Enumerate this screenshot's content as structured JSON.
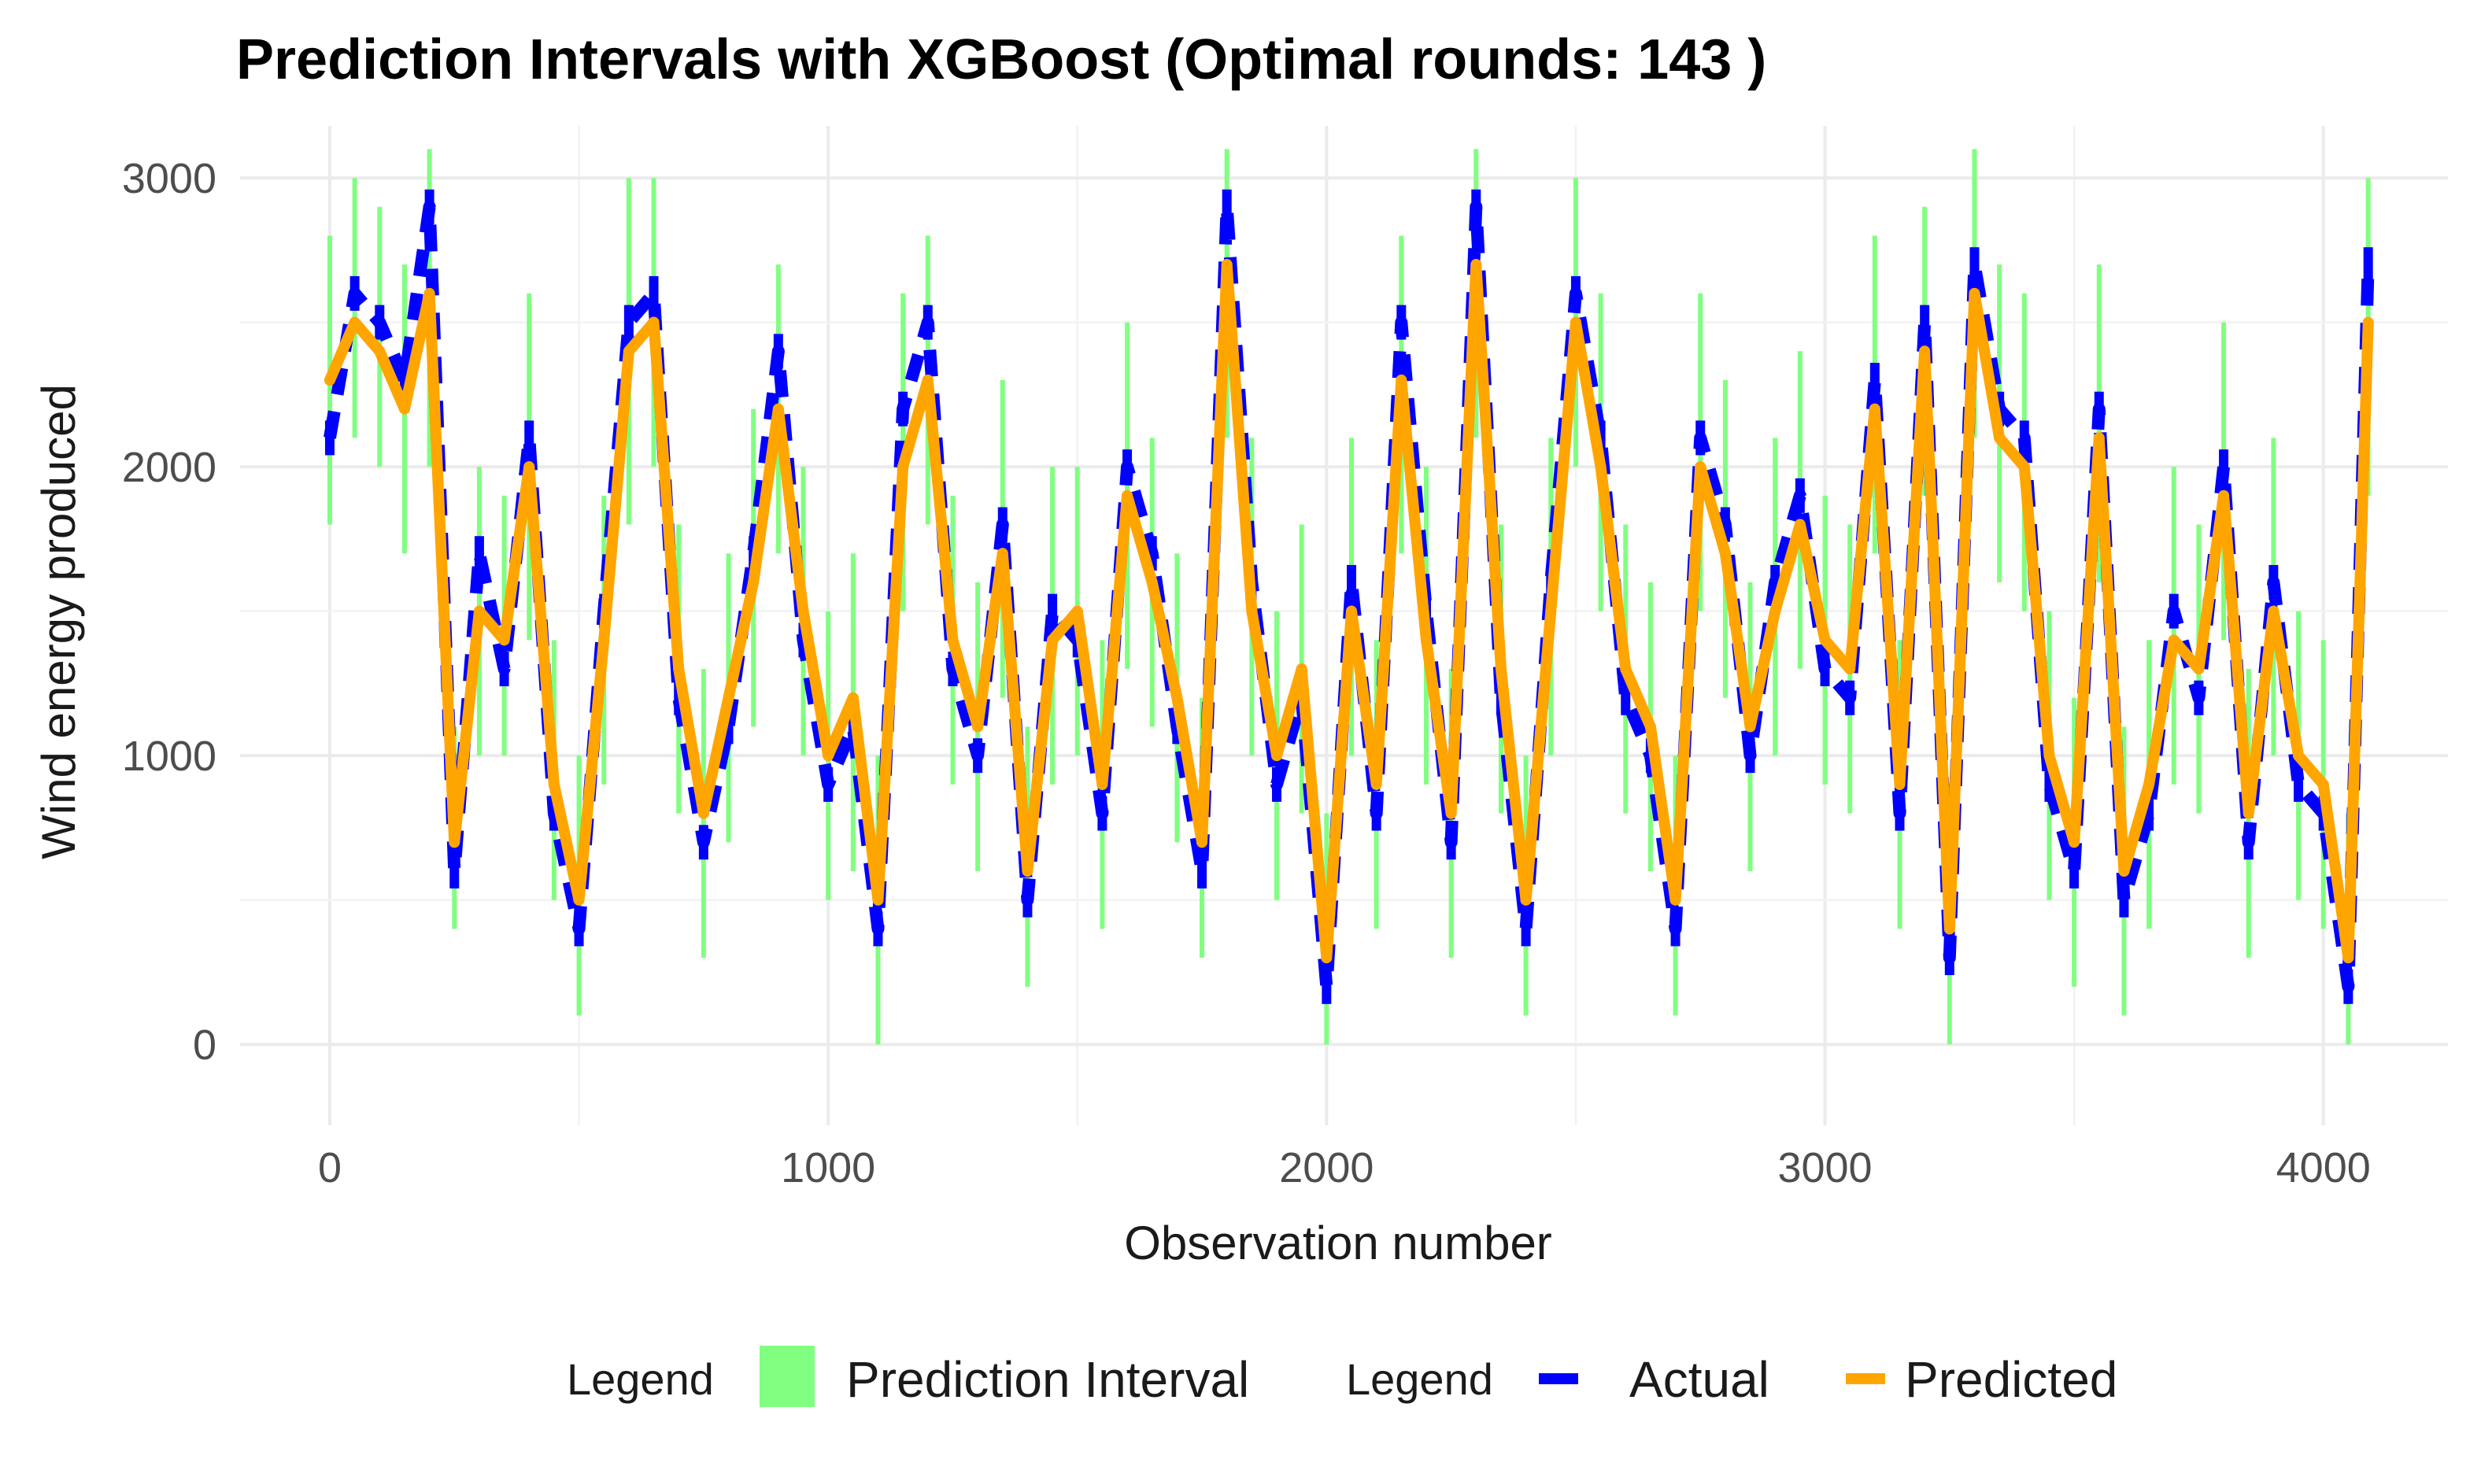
{
  "chart_data": {
    "type": "line",
    "title": "Prediction Intervals with XGBoost (Optimal rounds: 143 )",
    "xlabel": "Observation number",
    "ylabel": "Wind energy produced",
    "xlim": [
      -180,
      4250
    ],
    "ylim": [
      -280,
      3180
    ],
    "xticks": [
      0,
      1000,
      2000,
      3000,
      4000
    ],
    "xtick_labels": [
      "0",
      "1000",
      "2000",
      "3000",
      "4000"
    ],
    "yticks": [
      0,
      1000,
      2000,
      3000
    ],
    "ytick_labels": [
      "0",
      "1000",
      "2000",
      "3000"
    ],
    "grid": true,
    "legend_position": "bottom",
    "legend": [
      {
        "title": "Legend",
        "items": [
          {
            "label": "Prediction Interval",
            "color": "#80ff80",
            "kind": "fill"
          }
        ]
      },
      {
        "title": "Legend",
        "items": [
          {
            "label": "Actual",
            "color": "#0000ff",
            "kind": "dash"
          },
          {
            "label": "Predicted",
            "color": "#ffa500",
            "kind": "line"
          }
        ]
      }
    ],
    "x": [
      0,
      50,
      100,
      150,
      200,
      250,
      300,
      350,
      400,
      450,
      500,
      550,
      600,
      650,
      700,
      750,
      800,
      850,
      900,
      950,
      1000,
      1050,
      1100,
      1150,
      1200,
      1250,
      1300,
      1350,
      1400,
      1450,
      1500,
      1550,
      1600,
      1650,
      1700,
      1750,
      1800,
      1850,
      1900,
      1950,
      2000,
      2050,
      2100,
      2150,
      2200,
      2250,
      2300,
      2350,
      2400,
      2450,
      2500,
      2550,
      2600,
      2650,
      2700,
      2750,
      2800,
      2850,
      2900,
      2950,
      3000,
      3050,
      3100,
      3150,
      3200,
      3250,
      3300,
      3350,
      3400,
      3450,
      3500,
      3550,
      3600,
      3650,
      3700,
      3750,
      3800,
      3850,
      3900,
      3950,
      4000,
      4050,
      4090
    ],
    "series": [
      {
        "name": "Actual",
        "color": "#0000ff",
        "values": [
          2100,
          2600,
          2500,
          2300,
          2900,
          600,
          1700,
          1300,
          2100,
          800,
          400,
          1500,
          2500,
          2600,
          1200,
          700,
          1100,
          1700,
          2400,
          1400,
          900,
          1100,
          400,
          2200,
          2500,
          1300,
          1000,
          1800,
          500,
          1500,
          1400,
          800,
          2000,
          1700,
          1100,
          600,
          2900,
          1600,
          900,
          1200,
          200,
          1600,
          800,
          2500,
          1500,
          700,
          2900,
          1200,
          400,
          1600,
          2600,
          2100,
          1200,
          1000,
          400,
          2100,
          1800,
          1000,
          1600,
          1900,
          1300,
          1200,
          2300,
          800,
          2500,
          300,
          2700,
          2200,
          2100,
          900,
          600,
          2200,
          500,
          800,
          1500,
          1200,
          2000,
          700,
          1600,
          900,
          800,
          200,
          2700
        ]
      },
      {
        "name": "Predicted",
        "color": "#ffa500",
        "values": [
          2300,
          2500,
          2400,
          2200,
          2600,
          700,
          1500,
          1400,
          2000,
          900,
          500,
          1400,
          2400,
          2500,
          1300,
          800,
          1200,
          1600,
          2200,
          1500,
          1000,
          1200,
          500,
          2000,
          2300,
          1400,
          1100,
          1700,
          600,
          1400,
          1500,
          900,
          1900,
          1600,
          1200,
          700,
          2700,
          1500,
          1000,
          1300,
          300,
          1500,
          900,
          2300,
          1400,
          800,
          2700,
          1300,
          500,
          1500,
          2500,
          2000,
          1300,
          1100,
          500,
          2000,
          1700,
          1100,
          1500,
          1800,
          1400,
          1300,
          2200,
          900,
          2400,
          400,
          2600,
          2100,
          2000,
          1000,
          700,
          2100,
          600,
          900,
          1400,
          1300,
          1900,
          800,
          1500,
          1000,
          900,
          300,
          2500
        ]
      },
      {
        "name": "Prediction Interval",
        "color": "#80ff80",
        "kind": "band",
        "lower": [
          1800,
          2100,
          2000,
          1700,
          2000,
          400,
          1000,
          1000,
          1400,
          500,
          100,
          900,
          1800,
          2000,
          800,
          300,
          700,
          1100,
          1700,
          1000,
          500,
          600,
          0,
          1500,
          1800,
          900,
          600,
          1200,
          200,
          900,
          1000,
          400,
          1300,
          1100,
          700,
          300,
          2100,
          1000,
          500,
          800,
          0,
          1000,
          400,
          1700,
          900,
          300,
          2100,
          800,
          100,
          1000,
          2000,
          1500,
          800,
          600,
          100,
          1500,
          1200,
          600,
          1000,
          1300,
          900,
          800,
          1700,
          400,
          1900,
          0,
          2100,
          1600,
          1500,
          500,
          200,
          1600,
          100,
          400,
          900,
          800,
          1400,
          300,
          1000,
          500,
          400,
          0,
          1900
        ],
        "upper": [
          2800,
          3000,
          2900,
          2700,
          3100,
          1100,
          2000,
          1900,
          2600,
          1400,
          1000,
          1900,
          3000,
          3000,
          1800,
          1300,
          1700,
          2200,
          2700,
          2000,
          1500,
          1700,
          1000,
          2600,
          2800,
          1900,
          1600,
          2300,
          1100,
          2000,
          2000,
          1400,
          2500,
          2100,
          1700,
          1200,
          3100,
          2100,
          1500,
          1800,
          800,
          2100,
          1400,
          2800,
          2000,
          1300,
          3100,
          1800,
          1000,
          2100,
          3000,
          2600,
          1800,
          1600,
          1000,
          2600,
          2300,
          1600,
          2100,
          2400,
          1900,
          1800,
          2800,
          1400,
          2900,
          900,
          3100,
          2700,
          2600,
          1500,
          1200,
          2700,
          1100,
          1400,
          2000,
          1800,
          2500,
          1300,
          2100,
          1500,
          1400,
          800,
          3000
        ]
      }
    ]
  }
}
